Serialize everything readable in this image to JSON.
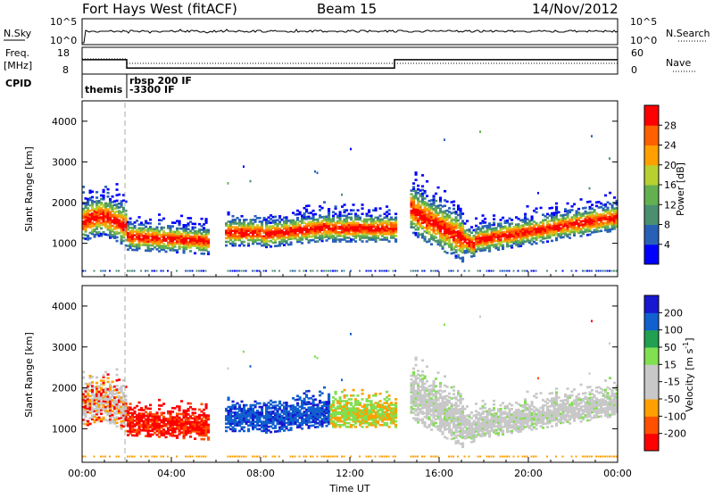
{
  "header": {
    "title": "Fort Hays West (fitACF)",
    "beam": "Beam 15",
    "date": "14/Nov/2012"
  },
  "top_panel": {
    "nsky_label": "N.Sky",
    "nsearch_label": "N.Search",
    "y_ticks_left": [
      "10^5",
      "10^0"
    ],
    "y_ticks_right": [
      "10^5",
      "10^0"
    ]
  },
  "freq_panel": {
    "freq_label": "Freq.",
    "freq_unit": "[MHz]",
    "nave_label": "Nave",
    "y_ticks_left": [
      "18",
      "8"
    ],
    "y_ticks_right": [
      "60",
      "0"
    ],
    "freq_profile": [
      {
        "t0": 0.0,
        "t1": 2.0,
        "mhz": 13.8
      },
      {
        "t0": 2.0,
        "t1": 14.0,
        "mhz": 10.4
      },
      {
        "t0": 14.0,
        "t1": 24.0,
        "mhz": 13.8
      }
    ]
  },
  "cpid": {
    "label": "CPID",
    "segments": [
      {
        "start": 0.0,
        "lines": [
          "themis"
        ]
      },
      {
        "start": 2.0,
        "lines": [
          "rbsp 200 IF",
          "-3300 IF"
        ]
      }
    ]
  },
  "xaxis": {
    "label": "Time UT",
    "ticks": [
      "00:00",
      "04:00",
      "08:00",
      "12:00",
      "16:00",
      "20:00",
      "00:00"
    ]
  },
  "colors": {
    "velocity": [
      "#ff0000",
      "#ff5000",
      "#ffa000",
      "#c8c8c8",
      "#c8c8c8",
      "#80e050",
      "#20a050",
      "#1060d0",
      "#1818d0"
    ],
    "power": [
      "#0000ff",
      "#2860b8",
      "#4a9070",
      "#64b050",
      "#b8d030",
      "#ffa000",
      "#ff6000",
      "#ff0000"
    ]
  },
  "chart_data": [
    {
      "type": "heatmap",
      "name": "power",
      "ylabel": "Slant Range [km]",
      "ylim": [
        180,
        4500
      ],
      "xlim": [
        0,
        24
      ],
      "y_ticks": [
        1000,
        2000,
        3000,
        4000
      ],
      "colorbar": {
        "label": "Power [dB]",
        "ticks": [
          4,
          8,
          12,
          16,
          20,
          24,
          28
        ],
        "range": [
          0,
          32
        ]
      }
    },
    {
      "type": "heatmap",
      "name": "velocity",
      "ylabel": "Slant Range [km]",
      "ylim": [
        180,
        4500
      ],
      "xlim": [
        0,
        24
      ],
      "y_ticks": [
        1000,
        2000,
        3000,
        4000
      ],
      "colorbar": {
        "label": "Velocity [m s^-1]",
        "ticks": [
          -200,
          -100,
          -50,
          -15,
          15,
          50,
          100,
          200
        ]
      }
    }
  ]
}
